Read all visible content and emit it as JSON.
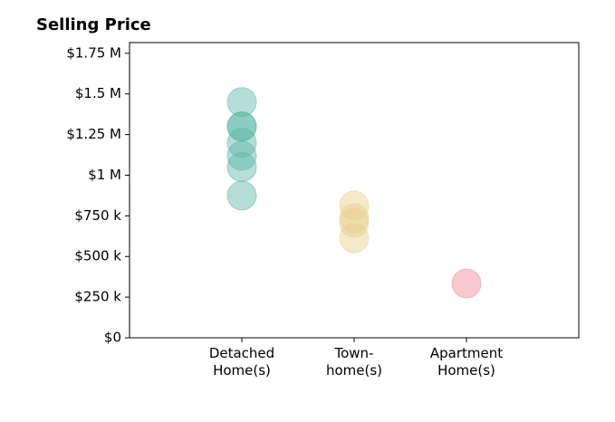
{
  "chart_data": {
    "type": "strip",
    "title": "Selling Price",
    "categories": [
      "Detached\nHome(s)",
      "Town-\nhome(s)",
      "Apartment\nHome(s)"
    ],
    "values": [
      [
        1450000,
        1300000,
        1300000,
        1200000,
        1120000,
        1050000,
        875000
      ],
      [
        814000,
        735000,
        708000,
        613000
      ],
      [
        334000
      ]
    ],
    "colors": [
      "#5bb5a7",
      "#e8cf8a",
      "#f08a94"
    ],
    "xlim": [
      0,
      4
    ],
    "ylim": [
      0,
      1816000
    ],
    "yticks": [
      {
        "value": 0,
        "label": "$0"
      },
      {
        "value": 250000,
        "label": "$250 k"
      },
      {
        "value": 500000,
        "label": "$500 k"
      },
      {
        "value": 750000,
        "label": "$750 k"
      },
      {
        "value": 1000000,
        "label": "$1 M"
      },
      {
        "value": 1250000,
        "label": "$1.25 M"
      },
      {
        "value": 1500000,
        "label": "$1.5 M"
      },
      {
        "value": 1750000,
        "label": "$1.75 M"
      }
    ],
    "grid": false
  }
}
